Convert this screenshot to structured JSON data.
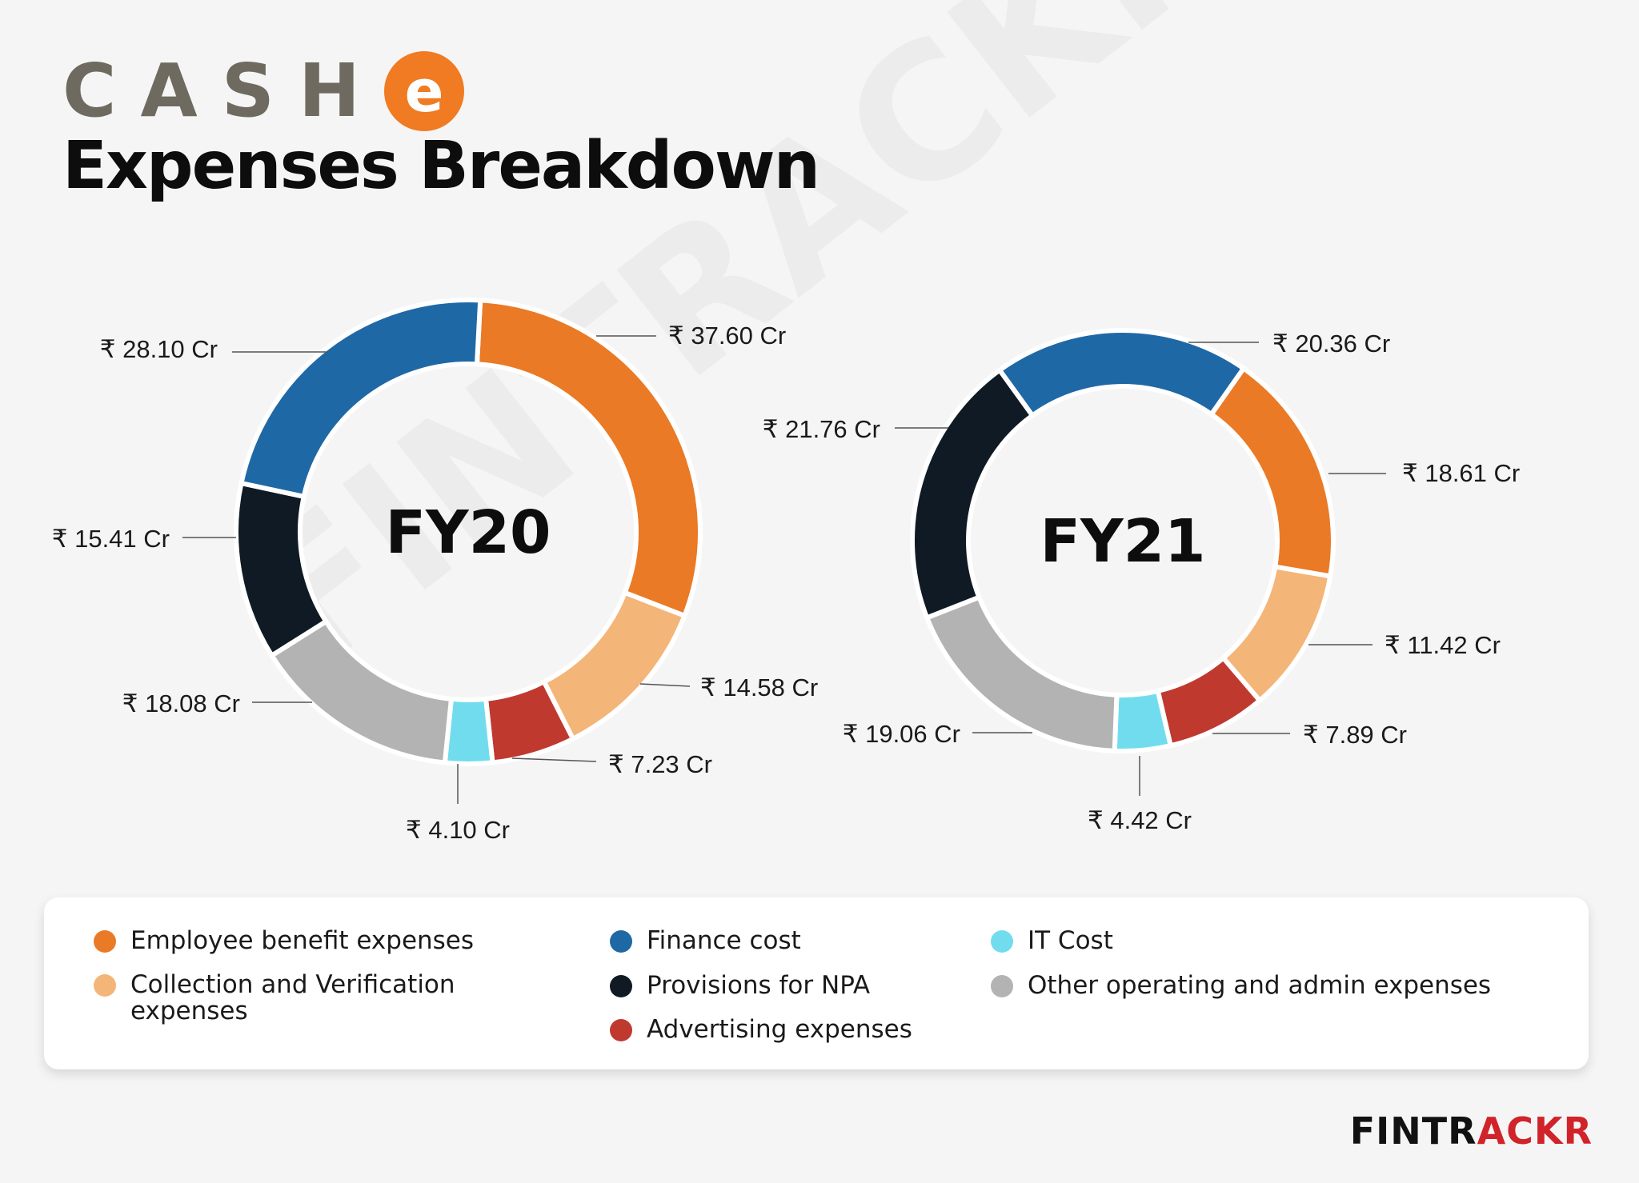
{
  "logo": {
    "text": "CASH",
    "mark": "e"
  },
  "title": "Expenses Breakdown",
  "watermark": "FINTRACKR",
  "colors": {
    "employee": "#ea7a26",
    "collection": "#f4b578",
    "finance": "#1f68a6",
    "provisions": "#0f1a24",
    "advertising": "#c0392f",
    "it": "#72dcef",
    "other": "#b3b3b3"
  },
  "legend": {
    "items": [
      {
        "key": "employee",
        "label": "Employee benefit expenses"
      },
      {
        "key": "collection",
        "label": "Collection and Verification expenses"
      },
      {
        "key": "finance",
        "label": "Finance cost"
      },
      {
        "key": "provisions",
        "label": "Provisions for NPA"
      },
      {
        "key": "advertising",
        "label": "Advertising expenses"
      },
      {
        "key": "it",
        "label": "IT Cost"
      },
      {
        "key": "other",
        "label": "Other operating and admin expenses"
      }
    ]
  },
  "chart_data": [
    {
      "type": "pie",
      "donut": true,
      "center_label": "FY20",
      "unit": "Cr",
      "currency": "₹",
      "slices": [
        {
          "category": "employee",
          "value": 37.6,
          "label": "₹ 37.60 Cr"
        },
        {
          "category": "collection",
          "value": 14.58,
          "label": "₹ 14.58 Cr"
        },
        {
          "category": "advertising",
          "value": 7.23,
          "label": "₹ 7.23 Cr"
        },
        {
          "category": "it",
          "value": 4.1,
          "label": "₹ 4.10 Cr"
        },
        {
          "category": "other",
          "value": 18.08,
          "label": "₹ 18.08 Cr"
        },
        {
          "category": "provisions",
          "value": 15.41,
          "label": "₹ 15.41 Cr"
        },
        {
          "category": "finance",
          "value": 28.1,
          "label": "₹ 28.10 Cr"
        }
      ]
    },
    {
      "type": "pie",
      "donut": true,
      "center_label": "FY21",
      "unit": "Cr",
      "currency": "₹",
      "slices": [
        {
          "category": "employee",
          "value": 18.61,
          "label": "₹ 18.61 Cr"
        },
        {
          "category": "collection",
          "value": 11.42,
          "label": "₹ 11.42 Cr"
        },
        {
          "category": "advertising",
          "value": 7.89,
          "label": "₹ 7.89 Cr"
        },
        {
          "category": "it",
          "value": 4.42,
          "label": "₹ 4.42 Cr"
        },
        {
          "category": "other",
          "value": 19.06,
          "label": "₹ 19.06 Cr"
        },
        {
          "category": "provisions",
          "value": 21.76,
          "label": "₹ 21.76 Cr"
        },
        {
          "category": "finance",
          "value": 20.36,
          "label": "₹ 20.36 Cr"
        }
      ]
    }
  ],
  "brand": {
    "part1": "FINTR",
    "part2": "ACKR"
  }
}
